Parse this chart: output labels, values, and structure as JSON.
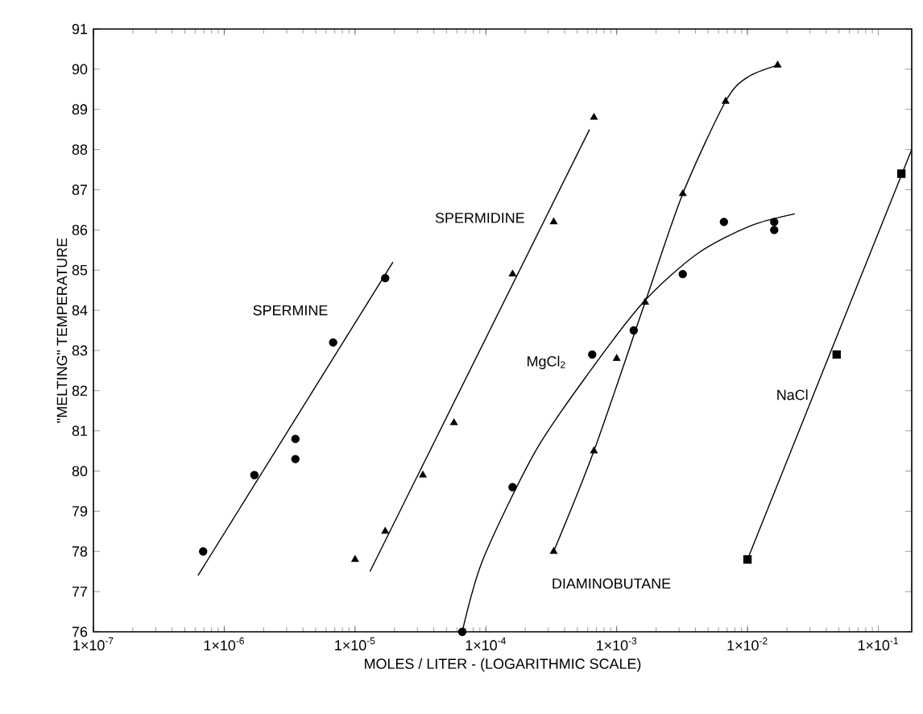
{
  "chart_data": {
    "type": "scatter",
    "xlabel": "MOLES / LITER - (LOGARITHMIC SCALE)",
    "ylabel": "\"MELTING\" TEMPERATURE",
    "log": "x",
    "xlim": [
      1e-07,
      0.18
    ],
    "ylim": [
      76,
      91
    ],
    "xticks": [
      {
        "value": 1e-07,
        "label": "1×10$^{-7}$"
      },
      {
        "value": 1e-06,
        "label": "1×10$^{-6}$"
      },
      {
        "value": 1e-05,
        "label": "1×10$^{-5}$"
      },
      {
        "value": 0.0001,
        "label": "1×10$^{-4}$"
      },
      {
        "value": 0.001,
        "label": "1×10$^{-3}$"
      },
      {
        "value": 0.01,
        "label": "1×10$^{-2}$"
      },
      {
        "value": 0.1,
        "label": "1×10$^{-1}$"
      }
    ],
    "yticks": [
      76,
      77,
      78,
      79,
      80,
      81,
      82,
      83,
      84,
      85,
      86,
      87,
      88,
      89,
      90,
      91
    ],
    "series": [
      {
        "name": "SPERMINE",
        "marker": "circle",
        "color": "#000000",
        "x": [
          6.9e-07,
          1.7e-06,
          3.5e-06,
          3.5e-06,
          6.8e-06,
          1.7e-05
        ],
        "values": [
          78.0,
          79.9,
          80.8,
          80.3,
          83.2,
          84.8
        ]
      },
      {
        "type": "line",
        "color": "#000000",
        "x": [
          6.3e-07,
          1.95e-05
        ],
        "values": [
          77.4,
          85.2
        ]
      },
      {
        "name": "SPERMIDINE",
        "marker": "triangle",
        "color": "#000000",
        "x": [
          1e-05,
          1.7e-05,
          3.3e-05,
          5.7e-05,
          0.00016,
          0.00033,
          0.00067
        ],
        "values": [
          77.8,
          78.5,
          79.9,
          81.2,
          84.9,
          86.2,
          88.8
        ]
      },
      {
        "type": "line",
        "color": "#000000",
        "x": [
          1.3e-05,
          0.00062
        ],
        "values": [
          77.5,
          88.5
        ]
      },
      {
        "name": "MgCl$_{2}$",
        "marker": "circle",
        "color": "#000000",
        "x": [
          6.6e-05,
          0.00016,
          0.00065,
          0.00135,
          0.0032,
          0.0066,
          0.016,
          0.016
        ],
        "values": [
          76.0,
          79.6,
          82.9,
          83.5,
          84.9,
          86.2,
          86.2,
          86.0
        ]
      },
      {
        "type": "line",
        "color": "#000000",
        "x": [
          6.6e-05,
          9.5e-05,
          0.00024,
          0.00063,
          0.0016,
          0.0041,
          0.0105,
          0.023
        ],
        "values": [
          76.0,
          77.8,
          80.5,
          82.5,
          84.2,
          85.4,
          86.1,
          86.4
        ]
      },
      {
        "name": "DIAMINOBUTANE",
        "marker": "triangle",
        "color": "#000000",
        "x": [
          0.00033,
          0.00067,
          0.001,
          0.00165,
          0.0032,
          0.0068,
          0.017
        ],
        "values": [
          78.0,
          80.5,
          82.8,
          84.2,
          86.9,
          89.2,
          90.1
        ]
      },
      {
        "type": "line",
        "color": "#000000",
        "x": [
          0.00033,
          0.00067,
          0.00165,
          0.0032,
          0.0068,
          0.01,
          0.017
        ],
        "values": [
          78.0,
          80.5,
          84.2,
          86.9,
          89.2,
          89.8,
          90.1
        ]
      },
      {
        "name": "NaCl",
        "marker": "square",
        "color": "#000000",
        "x": [
          0.01,
          0.048,
          0.15
        ],
        "values": [
          77.8,
          82.9,
          87.4
        ]
      },
      {
        "type": "line",
        "color": "#000000",
        "x": [
          0.01,
          0.18
        ],
        "values": [
          77.8,
          88.0
        ]
      }
    ]
  }
}
